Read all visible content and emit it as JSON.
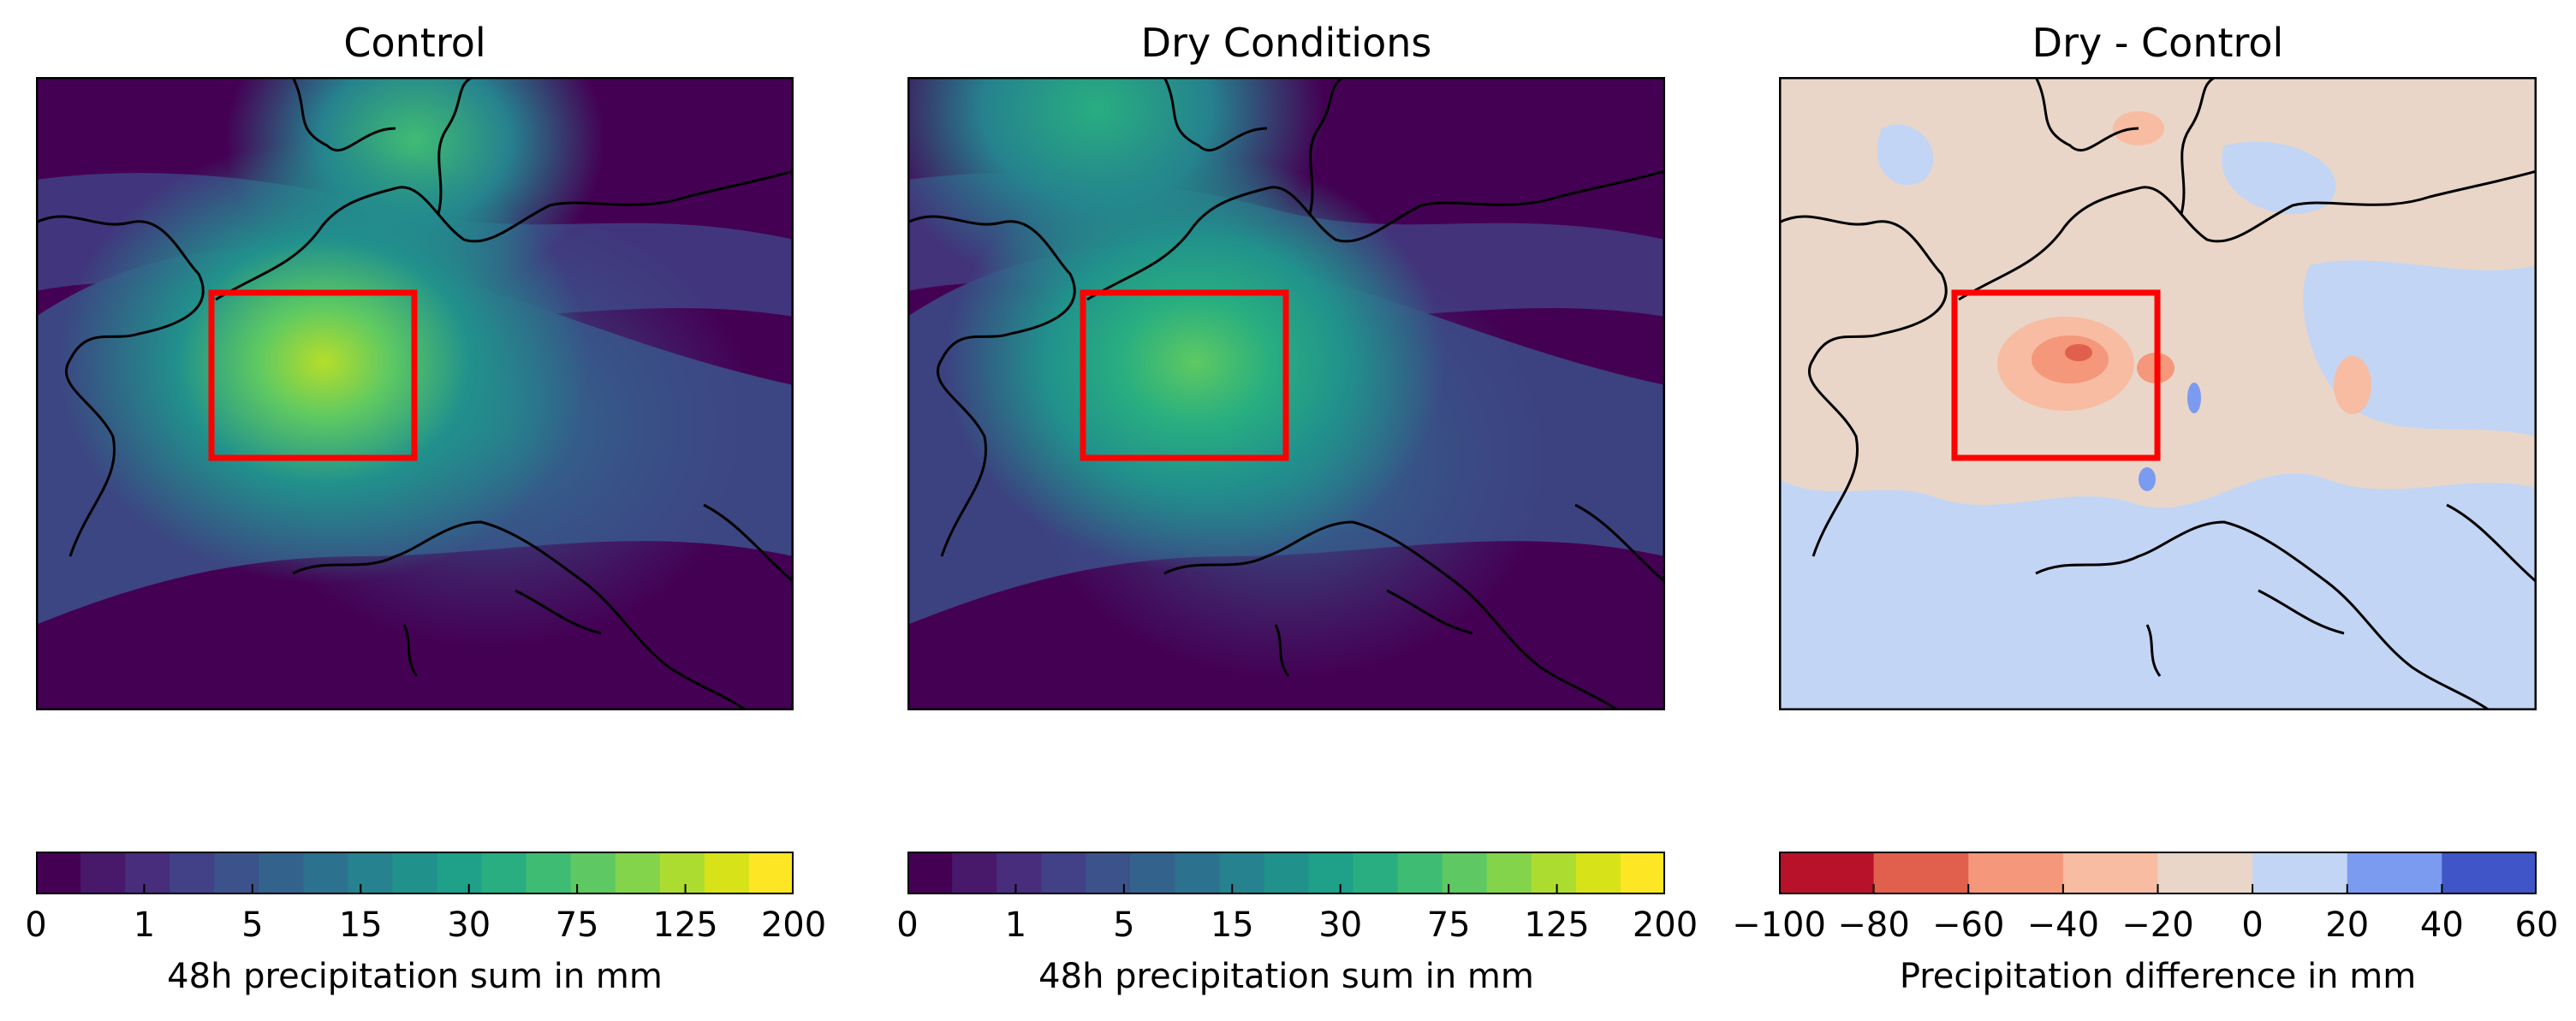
{
  "panels": [
    {
      "title": "Control"
    },
    {
      "title": "Dry Conditions"
    },
    {
      "title": "Dry - Control"
    }
  ],
  "colorbars": [
    {
      "label": "48h precipitation sum in mm",
      "ticks": [
        "0",
        "1",
        "5",
        "15",
        "30",
        "75",
        "125",
        "200"
      ],
      "colors": [
        "#440154",
        "#48186a",
        "#472d7b",
        "#424086",
        "#3b528b",
        "#33638d",
        "#2c728e",
        "#26828e",
        "#21918c",
        "#1fa088",
        "#28ae80",
        "#3fbc73",
        "#5ec962",
        "#84d44b",
        "#addc30",
        "#d8e219",
        "#fde725"
      ]
    },
    {
      "label": "48h precipitation sum in mm",
      "ticks": [
        "0",
        "1",
        "5",
        "15",
        "30",
        "75",
        "125",
        "200"
      ],
      "colors": [
        "#440154",
        "#48186a",
        "#472d7b",
        "#424086",
        "#3b528b",
        "#33638d",
        "#2c728e",
        "#26828e",
        "#21918c",
        "#1fa088",
        "#28ae80",
        "#3fbc73",
        "#5ec962",
        "#84d44b",
        "#addc30",
        "#d8e219",
        "#fde725"
      ]
    },
    {
      "label": "Precipitation difference in mm",
      "ticks": [
        "−100",
        "−80",
        "−60",
        "−40",
        "−20",
        "0",
        "20",
        "40",
        "60"
      ],
      "colors": [
        "#b8122a",
        "#e0604d",
        "#f4977a",
        "#f7bca2",
        "#e9d6c8",
        "#c3d5f4",
        "#7a9bf0",
        "#3f55c8"
      ]
    }
  ],
  "highlight_box_color": "#ff0000",
  "coastline_color": "#000000"
}
